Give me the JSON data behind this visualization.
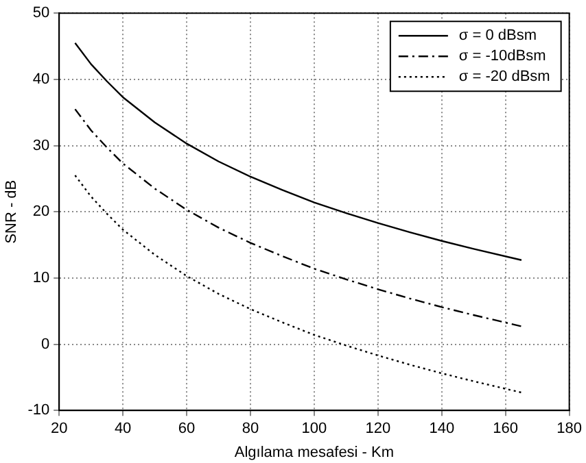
{
  "chart_data": {
    "type": "line",
    "xlabel": "Algılama mesafesi - Km",
    "ylabel": "SNR - dB",
    "x": [
      25,
      30,
      35,
      40,
      50,
      60,
      70,
      80,
      90,
      100,
      110,
      120,
      130,
      140,
      150,
      165
    ],
    "series": [
      {
        "name": "σ = 0 dBsm",
        "color": "#000000",
        "line_style": "solid",
        "values": [
          45.5,
          42.3,
          39.7,
          37.3,
          33.5,
          30.3,
          27.6,
          25.3,
          23.3,
          21.4,
          19.8,
          18.3,
          16.9,
          15.6,
          14.4,
          12.7
        ]
      },
      {
        "name": "σ = -10dBsm",
        "color": "#000000",
        "line_style": "dashdot",
        "values": [
          35.5,
          32.3,
          29.7,
          27.3,
          23.5,
          20.3,
          17.6,
          15.3,
          13.3,
          11.4,
          9.8,
          8.3,
          6.9,
          5.6,
          4.4,
          2.7
        ]
      },
      {
        "name": "σ = -20 dBsm",
        "color": "#000000",
        "line_style": "dotted",
        "values": [
          25.5,
          22.3,
          19.7,
          17.3,
          13.5,
          10.3,
          7.6,
          5.3,
          3.3,
          1.4,
          -0.2,
          -1.7,
          -3.1,
          -4.4,
          -5.6,
          -7.3
        ]
      }
    ],
    "xlim": [
      20,
      180
    ],
    "xticks": [
      20,
      40,
      60,
      80,
      100,
      120,
      140,
      160,
      180
    ],
    "ylim": [
      -10,
      50
    ],
    "yticks": [
      -10,
      0,
      10,
      20,
      30,
      40,
      50
    ],
    "grid": true,
    "legend": "top right",
    "marker": "none"
  }
}
